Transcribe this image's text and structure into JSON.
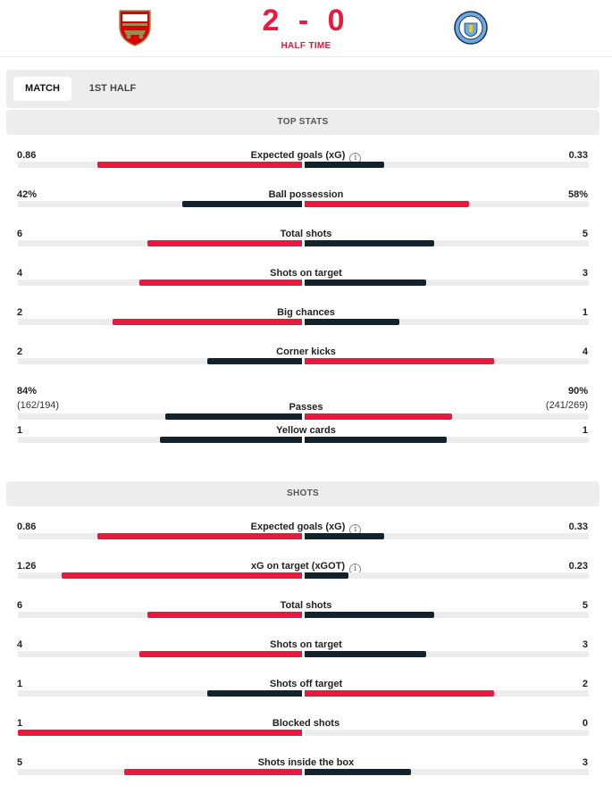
{
  "match": {
    "home_crest": "arsenal-crest",
    "away_crest": "manchester-city-crest",
    "score": "2 - 0",
    "period": "HALF TIME"
  },
  "colors": {
    "home": "#e8193c",
    "away": "#12232e",
    "track": "#ececec"
  },
  "tabs": [
    {
      "label": "MATCH",
      "active": true
    },
    {
      "label": "1ST HALF",
      "active": false
    }
  ],
  "sections": [
    {
      "title": "TOP STATS",
      "rows": [
        {
          "label": "Expected goals (xG)",
          "home": "0.86",
          "away": "0.33",
          "info": true,
          "home_share": 0.72,
          "away_share": 0.28,
          "leader": "home"
        },
        {
          "label": "Ball possession",
          "home": "42%",
          "away": "58%",
          "info": false,
          "home_share": 0.42,
          "away_share": 0.58,
          "leader": "away"
        },
        {
          "label": "Total shots",
          "home": "6",
          "away": "5",
          "info": false,
          "home_share": 0.545,
          "away_share": 0.455,
          "leader": "home"
        },
        {
          "label": "Shots on target",
          "home": "4",
          "away": "3",
          "info": false,
          "home_share": 0.571,
          "away_share": 0.429,
          "leader": "home"
        },
        {
          "label": "Big chances",
          "home": "2",
          "away": "1",
          "info": false,
          "home_share": 0.667,
          "away_share": 0.333,
          "leader": "home"
        },
        {
          "label": "Corner kicks",
          "home": "2",
          "away": "4",
          "info": false,
          "home_share": 0.333,
          "away_share": 0.667,
          "leader": "away"
        },
        {
          "label": "Passes",
          "home": "84%",
          "away": "90%",
          "home_sub": "(162/194)",
          "away_sub": "(241/269)",
          "info": false,
          "home_share": 0.48,
          "away_share": 0.52,
          "leader": "away"
        },
        {
          "label": "Yellow cards",
          "home": "1",
          "away": "1",
          "info": false,
          "home_share": 0.5,
          "away_share": 0.5,
          "leader": "none"
        }
      ]
    },
    {
      "title": "SHOTS",
      "rows": [
        {
          "label": "Expected goals (xG)",
          "home": "0.86",
          "away": "0.33",
          "info": true,
          "home_share": 0.72,
          "away_share": 0.28,
          "leader": "home"
        },
        {
          "label": "xG on target (xGOT)",
          "home": "1.26",
          "away": "0.23",
          "info": true,
          "home_share": 0.846,
          "away_share": 0.154,
          "leader": "home"
        },
        {
          "label": "Total shots",
          "home": "6",
          "away": "5",
          "info": false,
          "home_share": 0.545,
          "away_share": 0.455,
          "leader": "home"
        },
        {
          "label": "Shots on target",
          "home": "4",
          "away": "3",
          "info": false,
          "home_share": 0.571,
          "away_share": 0.429,
          "leader": "home"
        },
        {
          "label": "Shots off target",
          "home": "1",
          "away": "2",
          "info": false,
          "home_share": 0.333,
          "away_share": 0.667,
          "leader": "away"
        },
        {
          "label": "Blocked shots",
          "home": "1",
          "away": "0",
          "info": false,
          "home_share": 1.0,
          "away_share": 0.0,
          "leader": "home"
        },
        {
          "label": "Shots inside the box",
          "home": "5",
          "away": "3",
          "info": false,
          "home_share": 0.625,
          "away_share": 0.375,
          "leader": "home"
        }
      ]
    }
  ]
}
